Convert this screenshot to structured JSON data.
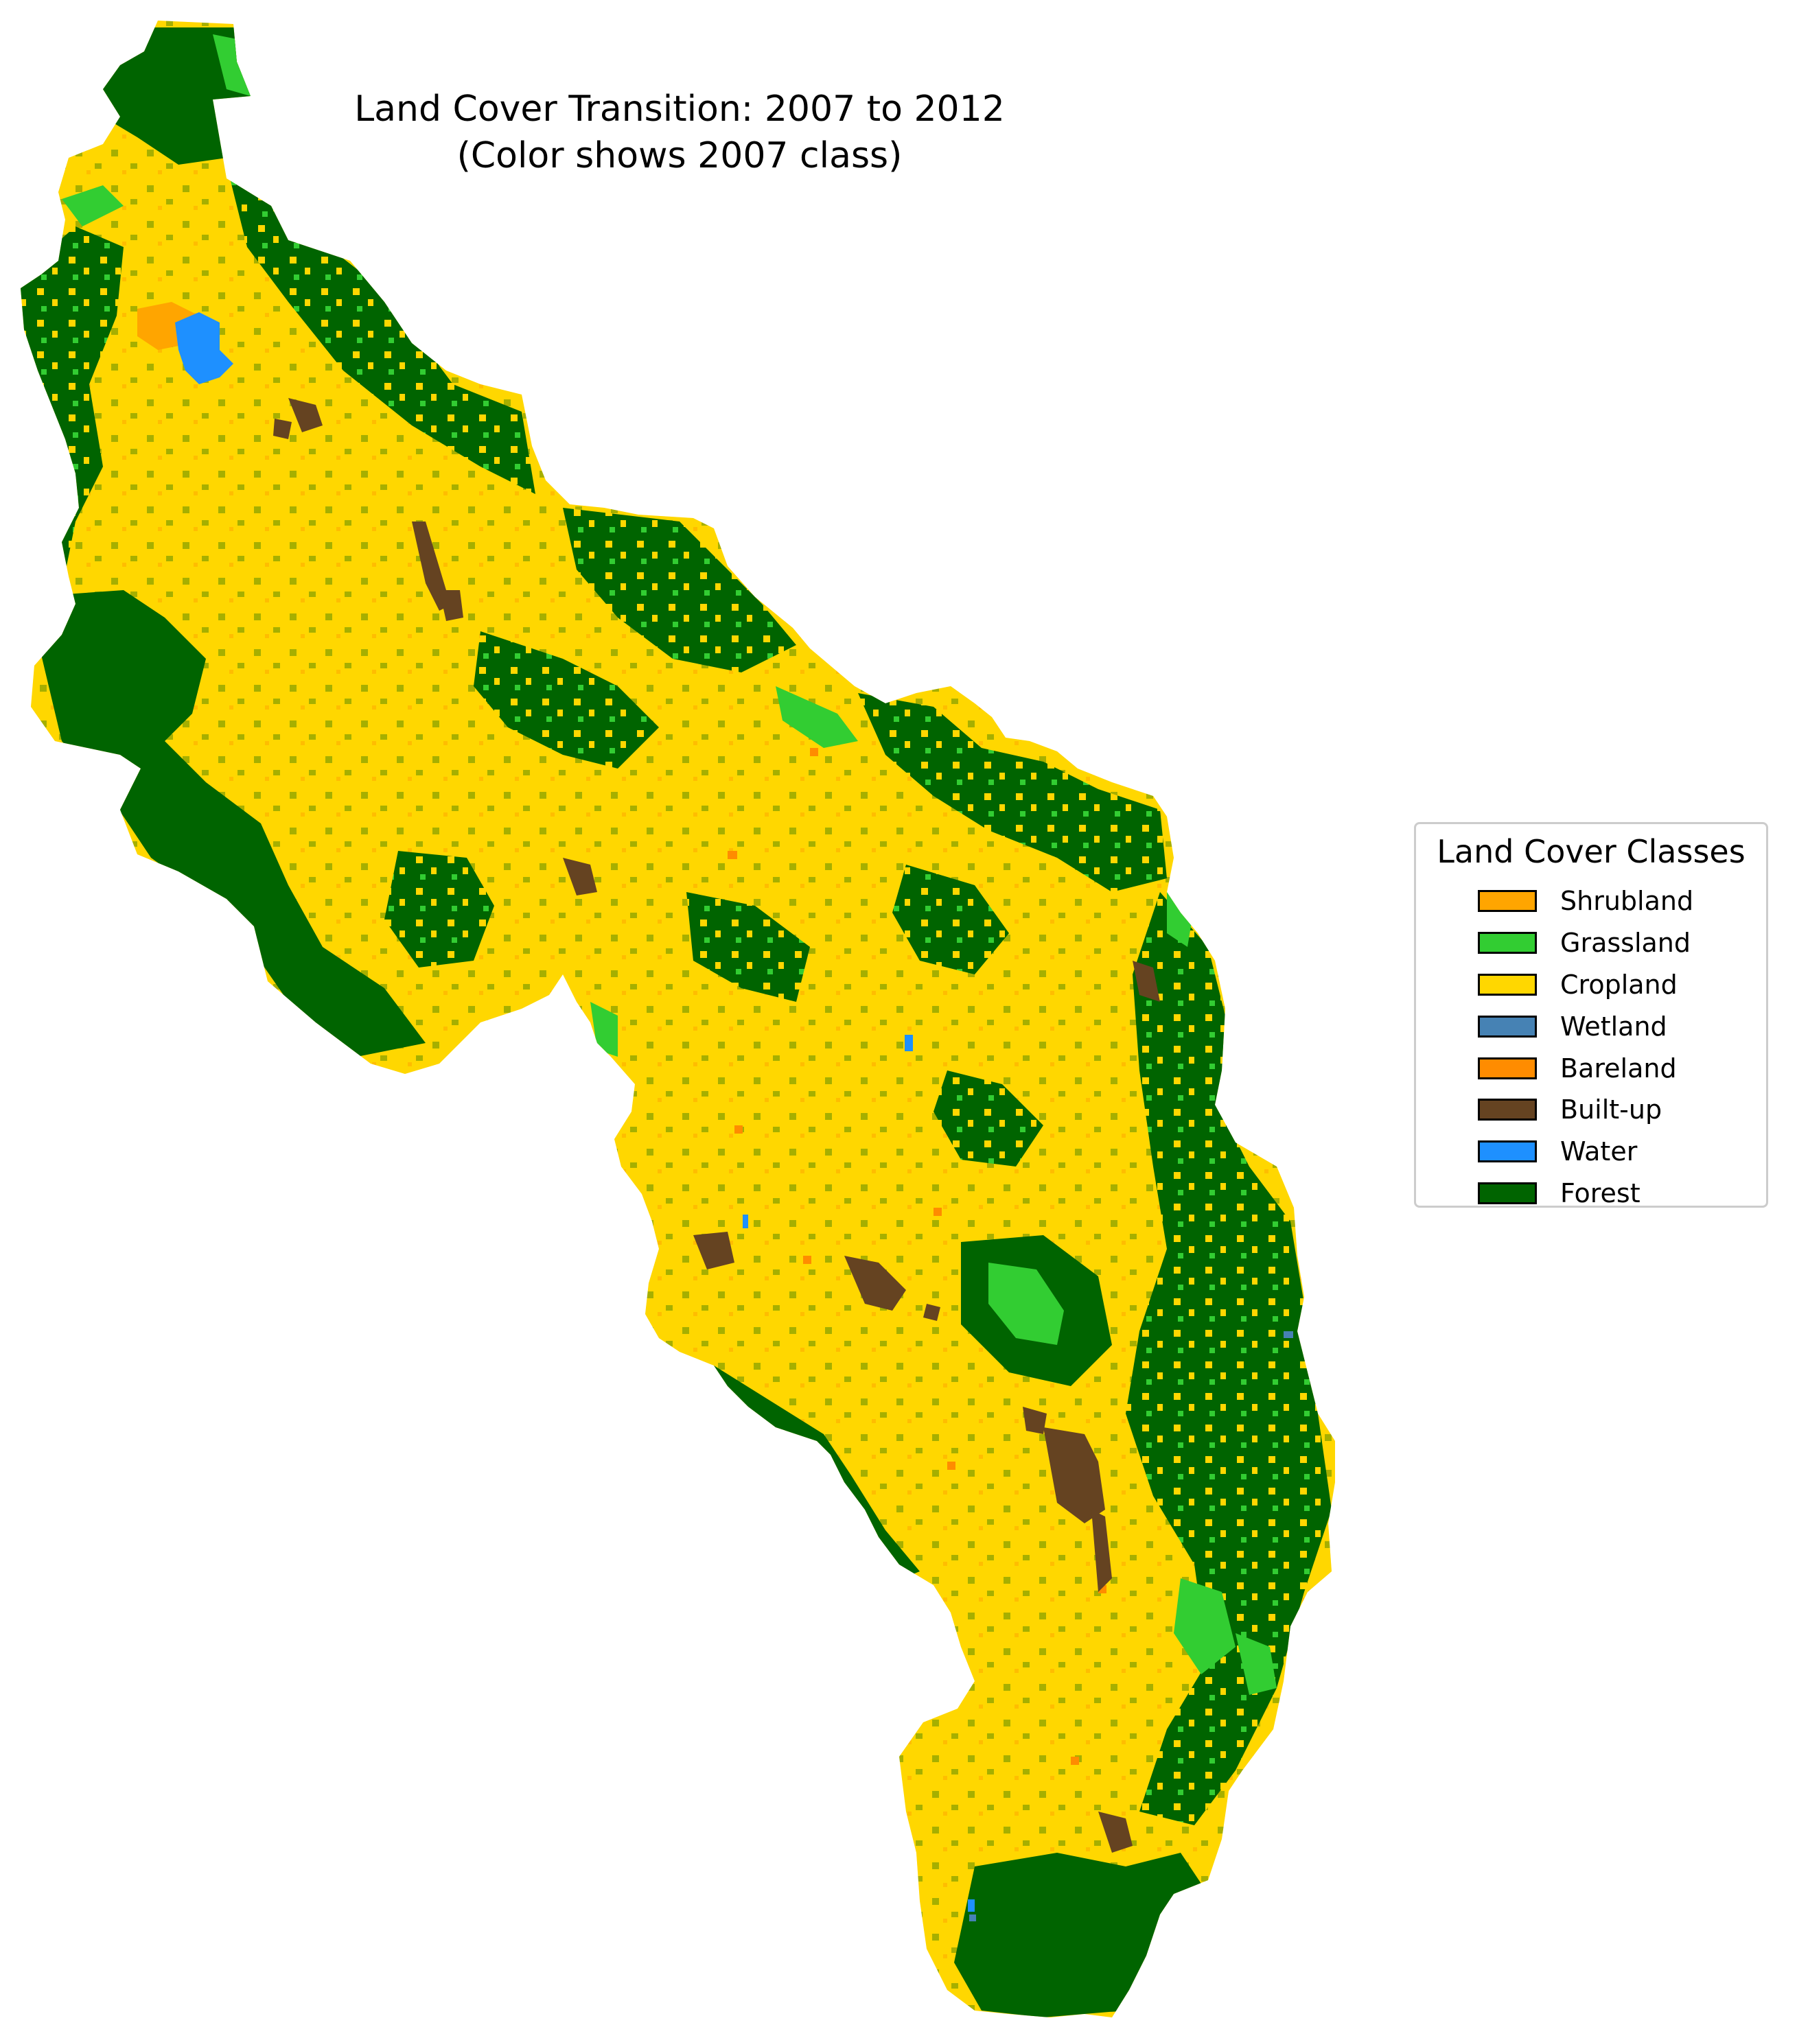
{
  "title": {
    "line1": "Land Cover Transition: 2007 to 2012",
    "line2": "(Color shows 2007 class)"
  },
  "legend": {
    "title": "Land Cover Classes",
    "items": [
      {
        "label": "Shrubland",
        "color": "#FFA500"
      },
      {
        "label": "Grassland",
        "color": "#32CD32"
      },
      {
        "label": "Cropland",
        "color": "#FFD700"
      },
      {
        "label": "Wetland",
        "color": "#4682B4"
      },
      {
        "label": "Bareland",
        "color": "#FF8C00"
      },
      {
        "label": "Built-up",
        "color": "#654321"
      },
      {
        "label": "Water",
        "color": "#1E90FF"
      },
      {
        "label": "Forest",
        "color": "#006400"
      }
    ]
  },
  "colors": {
    "shrubland": "#FFA500",
    "grassland": "#32CD32",
    "cropland": "#FFD700",
    "wetland": "#4682B4",
    "bareland": "#FF8C00",
    "builtup": "#654321",
    "water": "#1E90FF",
    "forest": "#006400"
  }
}
